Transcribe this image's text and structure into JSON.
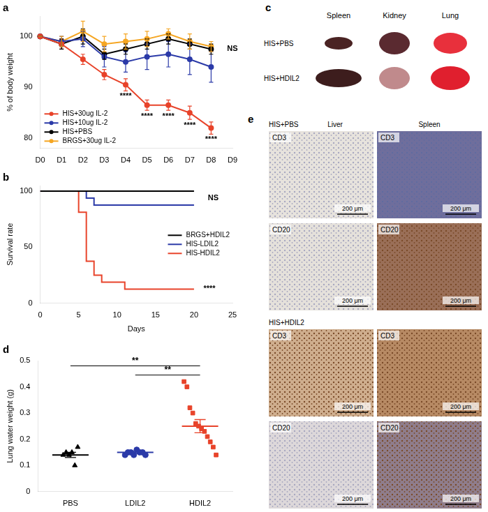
{
  "chart_data": [
    {
      "panel_label": "a",
      "type": "line",
      "y_label": "% of body weight",
      "categories": [
        "D0",
        "D1",
        "D2",
        "D3",
        "D4",
        "D5",
        "D6",
        "D7",
        "D8",
        "D9"
      ],
      "series": [
        {
          "name": "HIS+30ug IL-2",
          "color": "#e8432a",
          "marker": "circle",
          "values": [
            100,
            98.5,
            95.5,
            92.5,
            90.5,
            86.5,
            86.5,
            85,
            82,
            null
          ],
          "errors": [
            0,
            1,
            1,
            1,
            1.2,
            1,
            1,
            1.3,
            1.2,
            null
          ]
        },
        {
          "name": "HIS+10ug IL-2",
          "color": "#2b3aa8",
          "marker": "circle",
          "values": [
            100,
            99,
            99.5,
            96,
            95,
            96,
            96.5,
            95.5,
            94,
            null
          ],
          "errors": [
            0,
            1,
            1.5,
            2,
            2,
            2.5,
            2.5,
            3,
            3,
            null
          ]
        },
        {
          "name": "HIS+PBS",
          "color": "#000000",
          "marker": "circle",
          "values": [
            100,
            98.5,
            100,
            96.5,
            97.5,
            98.5,
            99.5,
            98.5,
            97.5,
            null
          ],
          "errors": [
            0,
            1,
            1.5,
            1,
            1,
            1,
            1,
            1,
            1,
            null
          ]
        },
        {
          "name": "BRGS+30ug IL-2",
          "color": "#f5a623",
          "marker": "circle",
          "values": [
            100,
            99,
            101,
            98.5,
            99,
            99.5,
            100.5,
            99,
            98,
            null
          ],
          "errors": [
            0,
            1,
            2,
            1.5,
            1.5,
            1.5,
            1,
            1.5,
            1,
            null
          ]
        }
      ],
      "ylim": [
        78,
        104
      ],
      "yticks": [
        80,
        90,
        100
      ],
      "grid": false,
      "legend": "lower left",
      "annotations": [
        {
          "text": "****",
          "x": "D4",
          "y": 88.3
        },
        {
          "text": "****",
          "x": "D5",
          "y": 84.3
        },
        {
          "text": "****",
          "x": "D6",
          "y": 84.3
        },
        {
          "text": "****",
          "x": "D7",
          "y": 82.5
        },
        {
          "text": "****",
          "x": "D8",
          "y": 79.7
        },
        {
          "text": "NS",
          "x": "D9",
          "y": 97.5
        }
      ]
    },
    {
      "panel_label": "b",
      "type": "line",
      "line_style": "step",
      "x_label": "Days",
      "y_label": "Survival rate",
      "series": [
        {
          "name": "BRGS+HDIL2",
          "color": "#000000",
          "x": [
            0,
            20
          ],
          "values": [
            100,
            100
          ]
        },
        {
          "name": "HIS-LDIL2",
          "color": "#2b3aa8",
          "x": [
            0,
            6,
            7,
            20
          ],
          "values": [
            100,
            93.75,
            87.5,
            87.5
          ]
        },
        {
          "name": "HIS-HDIL2",
          "color": "#e8432a",
          "x": [
            0,
            5,
            6,
            7,
            8,
            11,
            20
          ],
          "values": [
            100,
            81.25,
            37.5,
            25,
            18.75,
            12.5,
            12.5
          ]
        }
      ],
      "xlim": [
        0,
        25
      ],
      "xticks": [
        0,
        5,
        10,
        15,
        20,
        25
      ],
      "ylim": [
        0,
        105
      ],
      "yticks": [
        0,
        50,
        100
      ],
      "grid": false,
      "legend": "center right",
      "annotations": [
        {
          "text": "NS",
          "x": 22.5,
          "y": 94
        },
        {
          "text": "****",
          "x": 22,
          "y": 13
        }
      ]
    },
    {
      "panel_label": "d",
      "type": "scatter",
      "y_label": "Lung water weight (g)",
      "categories": [
        "PBS",
        "LDIL2",
        "HDIL2"
      ],
      "groups": [
        {
          "category": "PBS",
          "color": "#000000",
          "marker": "triangle",
          "values": [
            0.14,
            0.15,
            0.14,
            0.15,
            0.1,
            0.17
          ],
          "mean": 0.14,
          "sem": 0.01
        },
        {
          "category": "LDIL2",
          "color": "#2b3aa8",
          "marker": "circle",
          "values": [
            0.14,
            0.15,
            0.15,
            0.14,
            0.16,
            0.15,
            0.15,
            0.14
          ],
          "mean": 0.15,
          "sem": 0.005
        },
        {
          "category": "HDIL2",
          "color": "#e8432a",
          "marker": "square",
          "values": [
            0.42,
            0.4,
            0.32,
            0.3,
            0.26,
            0.25,
            0.24,
            0.23,
            0.21,
            0.19,
            0.17,
            0.14
          ],
          "mean": 0.25,
          "sem": 0.025
        }
      ],
      "ylim": [
        0,
        0.5
      ],
      "yticks": [
        0,
        0.1,
        0.2,
        0.3,
        0.4,
        0.5
      ],
      "grid": false,
      "significance": [
        {
          "from": "PBS",
          "to": "HDIL2",
          "text": "**",
          "y": 0.48
        },
        {
          "from": "LDIL2",
          "to": "HDIL2",
          "text": "**",
          "y": 0.445
        }
      ]
    }
  ],
  "panel_c": {
    "panel_label": "c",
    "columns": [
      "Spleen",
      "Kidney",
      "Lung"
    ],
    "rows": [
      "HIS+PBS",
      "HIS+HDIL2"
    ]
  },
  "panel_e": {
    "panel_label": "e",
    "scale_bar": "200 μm",
    "groups": [
      {
        "title": "HIS+PBS",
        "columns": [
          "Liver",
          "Spleen"
        ],
        "cells": [
          [
            "CD3",
            "CD3"
          ],
          [
            "CD20",
            "CD20"
          ]
        ]
      },
      {
        "title": "HIS+HDIL2",
        "cells": [
          [
            "CD3",
            "CD3"
          ],
          [
            "CD20",
            "CD20"
          ]
        ]
      }
    ]
  }
}
